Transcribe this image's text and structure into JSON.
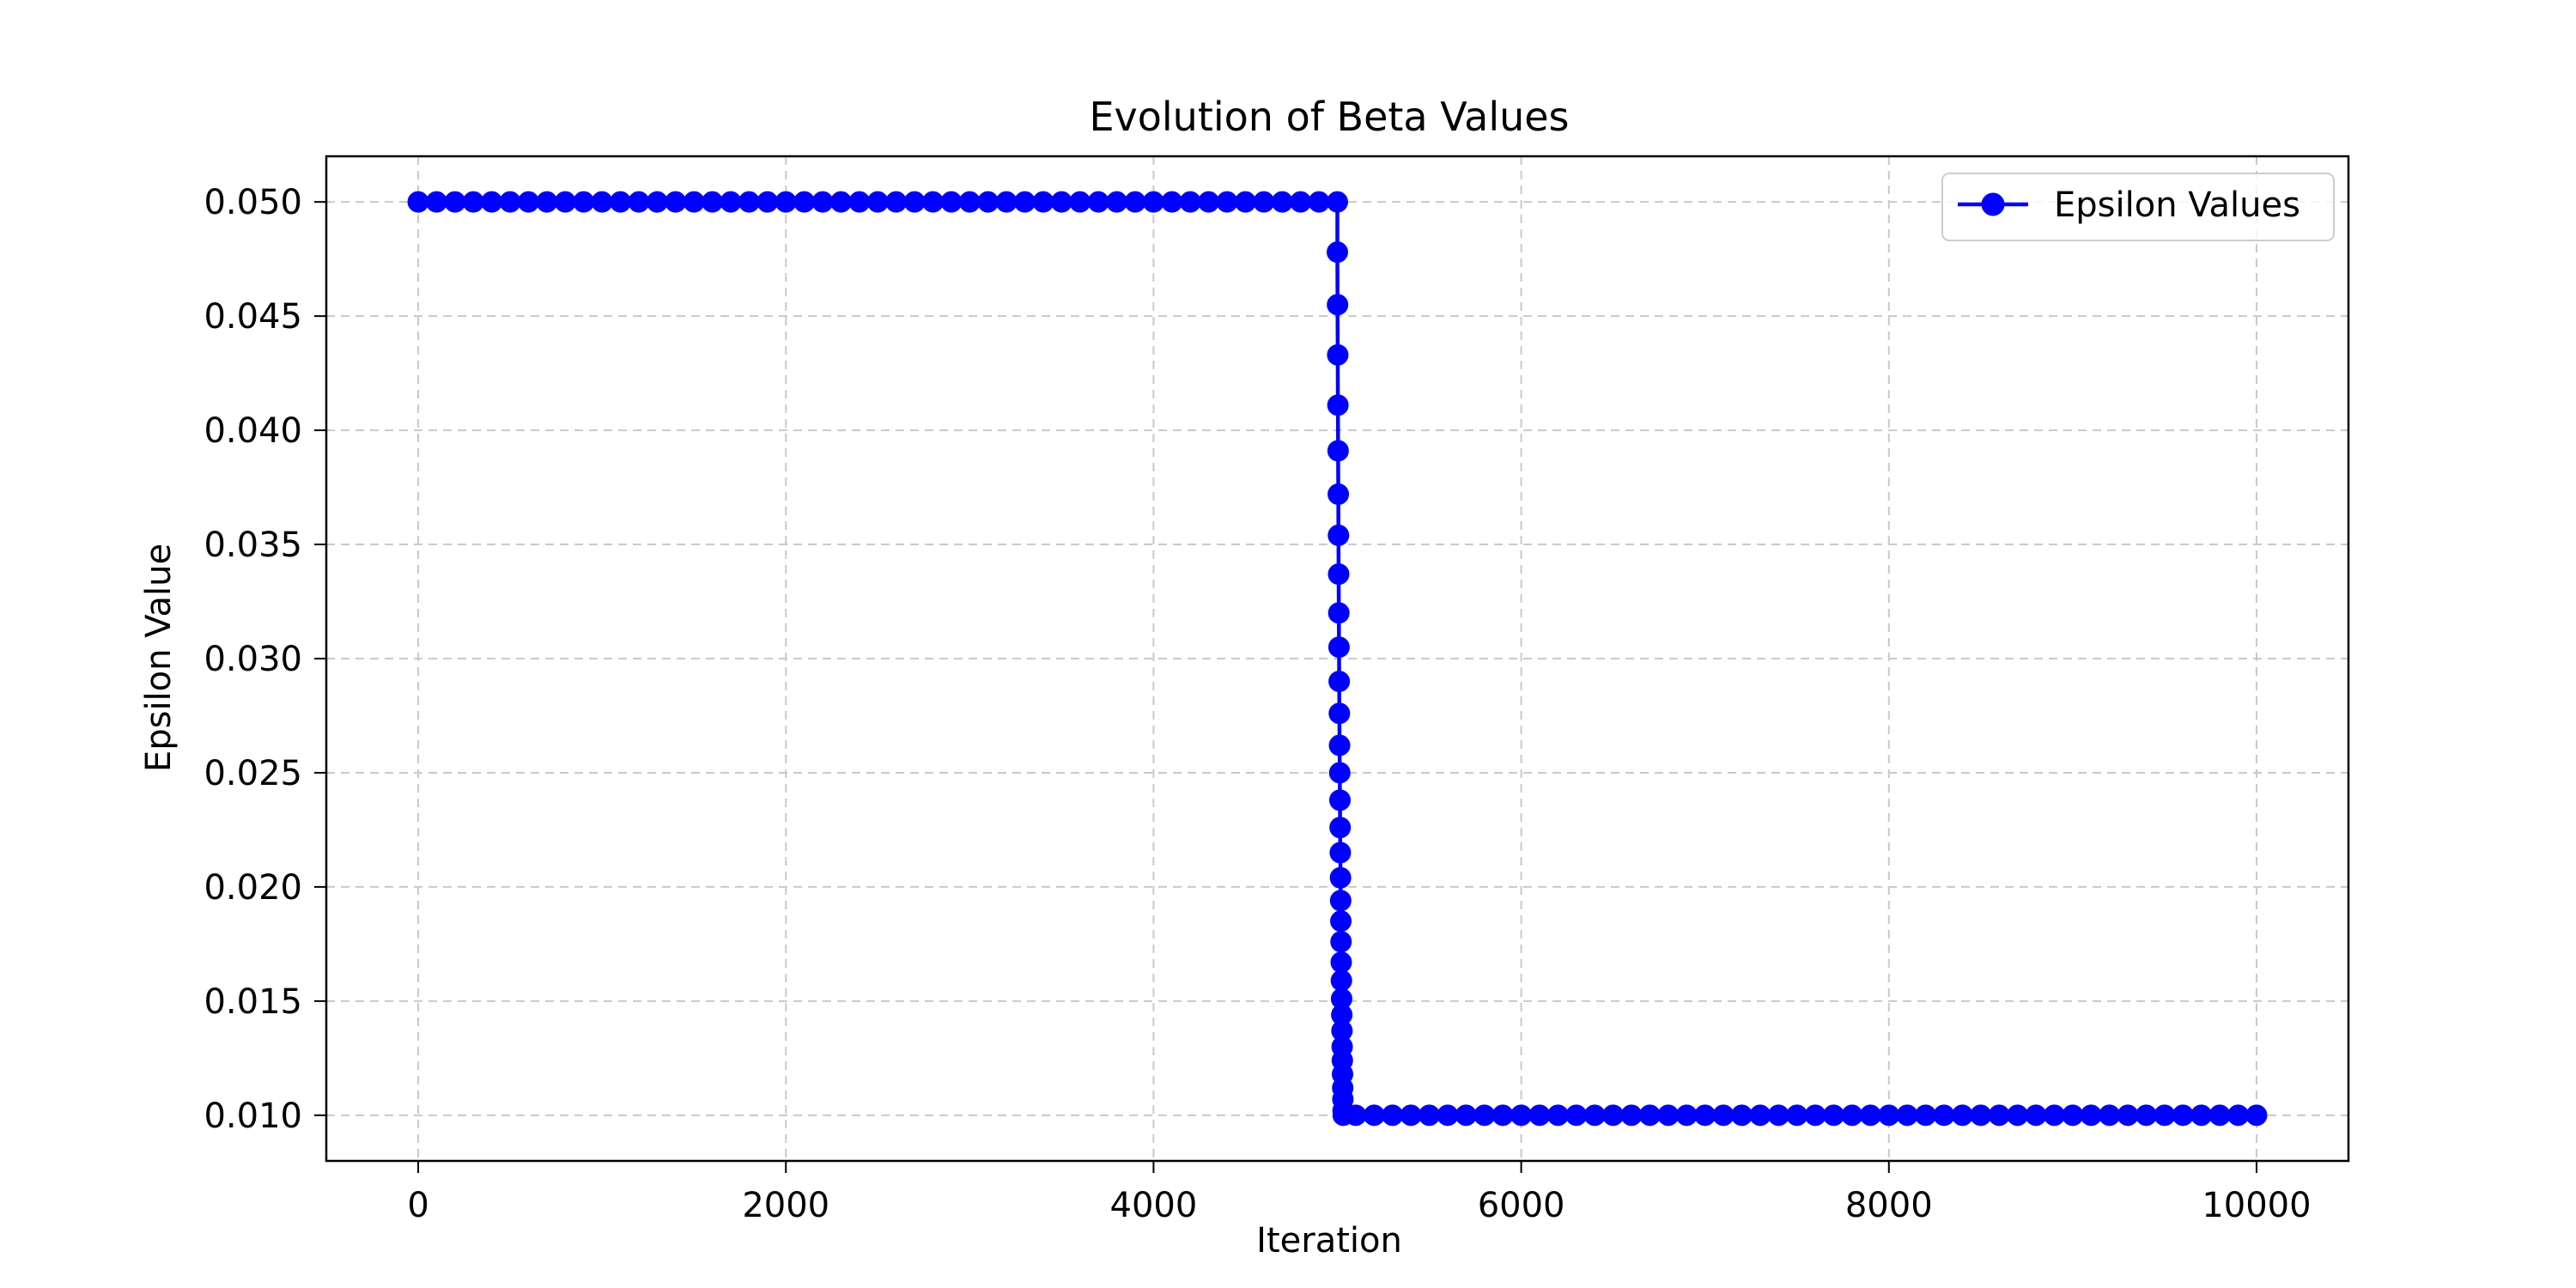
{
  "chart_data": {
    "type": "line",
    "title": "Evolution of Beta Values",
    "xlabel": "Iteration",
    "ylabel": "Epsilon Value",
    "xlim": [
      -500,
      10500
    ],
    "ylim": [
      0.008,
      0.052
    ],
    "xticks": [
      0,
      2000,
      4000,
      6000,
      8000,
      10000
    ],
    "xtick_labels": [
      "0",
      "2000",
      "4000",
      "6000",
      "8000",
      "10000"
    ],
    "yticks": [
      0.01,
      0.015,
      0.02,
      0.025,
      0.03,
      0.035,
      0.04,
      0.045,
      0.05
    ],
    "ytick_labels": [
      "0.010",
      "0.015",
      "0.020",
      "0.025",
      "0.030",
      "0.035",
      "0.040",
      "0.045",
      "0.050"
    ],
    "grid": true,
    "grid_style": "dashed",
    "legend_position": "top-right",
    "series": [
      {
        "name": "Epsilon Values",
        "color": "#0000ff",
        "marker": "circle",
        "points": [
          [
            0,
            0.05
          ],
          [
            100,
            0.05
          ],
          [
            200,
            0.05
          ],
          [
            300,
            0.05
          ],
          [
            400,
            0.05
          ],
          [
            500,
            0.05
          ],
          [
            600,
            0.05
          ],
          [
            700,
            0.05
          ],
          [
            800,
            0.05
          ],
          [
            900,
            0.05
          ],
          [
            1000,
            0.05
          ],
          [
            1100,
            0.05
          ],
          [
            1200,
            0.05
          ],
          [
            1300,
            0.05
          ],
          [
            1400,
            0.05
          ],
          [
            1500,
            0.05
          ],
          [
            1600,
            0.05
          ],
          [
            1700,
            0.05
          ],
          [
            1800,
            0.05
          ],
          [
            1900,
            0.05
          ],
          [
            2000,
            0.05
          ],
          [
            2100,
            0.05
          ],
          [
            2200,
            0.05
          ],
          [
            2300,
            0.05
          ],
          [
            2400,
            0.05
          ],
          [
            2500,
            0.05
          ],
          [
            2600,
            0.05
          ],
          [
            2700,
            0.05
          ],
          [
            2800,
            0.05
          ],
          [
            2900,
            0.05
          ],
          [
            3000,
            0.05
          ],
          [
            3100,
            0.05
          ],
          [
            3200,
            0.05
          ],
          [
            3300,
            0.05
          ],
          [
            3400,
            0.05
          ],
          [
            3500,
            0.05
          ],
          [
            3600,
            0.05
          ],
          [
            3700,
            0.05
          ],
          [
            3800,
            0.05
          ],
          [
            3900,
            0.05
          ],
          [
            4000,
            0.05
          ],
          [
            4100,
            0.05
          ],
          [
            4200,
            0.05
          ],
          [
            4300,
            0.05
          ],
          [
            4400,
            0.05
          ],
          [
            4500,
            0.05
          ],
          [
            4600,
            0.05
          ],
          [
            4700,
            0.05
          ],
          [
            4800,
            0.05
          ],
          [
            4900,
            0.05
          ],
          [
            5000,
            0.05
          ],
          [
            5000,
            0.0478
          ],
          [
            5001,
            0.0455
          ],
          [
            5002,
            0.0433
          ],
          [
            5003,
            0.0411
          ],
          [
            5004,
            0.0391
          ],
          [
            5005,
            0.0372
          ],
          [
            5006,
            0.0354
          ],
          [
            5007,
            0.0337
          ],
          [
            5008,
            0.032
          ],
          [
            5009,
            0.0305
          ],
          [
            5010,
            0.029
          ],
          [
            5011,
            0.0276
          ],
          [
            5012,
            0.0262
          ],
          [
            5013,
            0.025
          ],
          [
            5014,
            0.0238
          ],
          [
            5015,
            0.0226
          ],
          [
            5016,
            0.0215
          ],
          [
            5017,
            0.0204
          ],
          [
            5018,
            0.0194
          ],
          [
            5019,
            0.0185
          ],
          [
            5020,
            0.0176
          ],
          [
            5021,
            0.0167
          ],
          [
            5022,
            0.0159
          ],
          [
            5023,
            0.0151
          ],
          [
            5024,
            0.0144
          ],
          [
            5025,
            0.0137
          ],
          [
            5026,
            0.013
          ],
          [
            5027,
            0.0124
          ],
          [
            5028,
            0.0118
          ],
          [
            5029,
            0.0112
          ],
          [
            5030,
            0.0107
          ],
          [
            5031,
            0.0102
          ],
          [
            5032,
            0.01
          ],
          [
            5100,
            0.01
          ],
          [
            5200,
            0.01
          ],
          [
            5300,
            0.01
          ],
          [
            5400,
            0.01
          ],
          [
            5500,
            0.01
          ],
          [
            5600,
            0.01
          ],
          [
            5700,
            0.01
          ],
          [
            5800,
            0.01
          ],
          [
            5900,
            0.01
          ],
          [
            6000,
            0.01
          ],
          [
            6100,
            0.01
          ],
          [
            6200,
            0.01
          ],
          [
            6300,
            0.01
          ],
          [
            6400,
            0.01
          ],
          [
            6500,
            0.01
          ],
          [
            6600,
            0.01
          ],
          [
            6700,
            0.01
          ],
          [
            6800,
            0.01
          ],
          [
            6900,
            0.01
          ],
          [
            7000,
            0.01
          ],
          [
            7100,
            0.01
          ],
          [
            7200,
            0.01
          ],
          [
            7300,
            0.01
          ],
          [
            7400,
            0.01
          ],
          [
            7500,
            0.01
          ],
          [
            7600,
            0.01
          ],
          [
            7700,
            0.01
          ],
          [
            7800,
            0.01
          ],
          [
            7900,
            0.01
          ],
          [
            8000,
            0.01
          ],
          [
            8100,
            0.01
          ],
          [
            8200,
            0.01
          ],
          [
            8300,
            0.01
          ],
          [
            8400,
            0.01
          ],
          [
            8500,
            0.01
          ],
          [
            8600,
            0.01
          ],
          [
            8700,
            0.01
          ],
          [
            8800,
            0.01
          ],
          [
            8900,
            0.01
          ],
          [
            9000,
            0.01
          ],
          [
            9100,
            0.01
          ],
          [
            9200,
            0.01
          ],
          [
            9300,
            0.01
          ],
          [
            9400,
            0.01
          ],
          [
            9500,
            0.01
          ],
          [
            9600,
            0.01
          ],
          [
            9700,
            0.01
          ],
          [
            9800,
            0.01
          ],
          [
            9900,
            0.01
          ],
          [
            10000,
            0.01
          ]
        ]
      }
    ]
  }
}
